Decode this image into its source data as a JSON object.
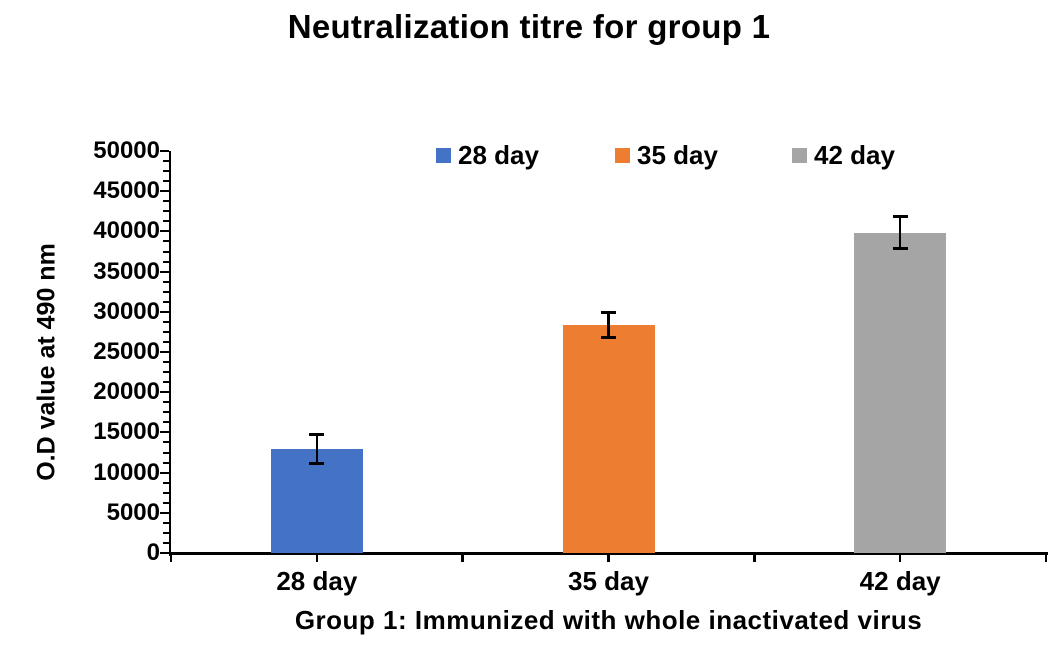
{
  "chart_data": {
    "type": "bar",
    "title": "Neutralization titre for group 1",
    "categories": [
      "28 day",
      "35 day",
      "42 day"
    ],
    "values": [
      12900,
      28350,
      39850
    ],
    "error_bars": [
      1800,
      1600,
      2000
    ],
    "bar_colors": [
      "#4472C4",
      "#ED7D31",
      "#A5A5A5"
    ],
    "legend": [
      {
        "label": "28 day",
        "color": "#4472C4"
      },
      {
        "label": "35 day",
        "color": "#ED7D31"
      },
      {
        "label": "42 day",
        "color": "#A5A5A5"
      }
    ],
    "legend_position": "top-inside",
    "xlabel": "Group 1: Immunized with whole inactivated virus",
    "ylabel": "O.D value at 490 nm",
    "ylim": [
      0,
      50000
    ],
    "y_major_unit": 5000,
    "y_minor_unit": 1250,
    "y_tick_labels": [
      "0",
      "5000",
      "10000",
      "15000",
      "20000",
      "25000",
      "30000",
      "35000",
      "40000",
      "45000",
      "50000"
    ],
    "gridlines": "off",
    "axis_color": "#000000",
    "error_bar_color": "#000000",
    "background_color": "#FFFFFF",
    "text_color": "#000000"
  }
}
